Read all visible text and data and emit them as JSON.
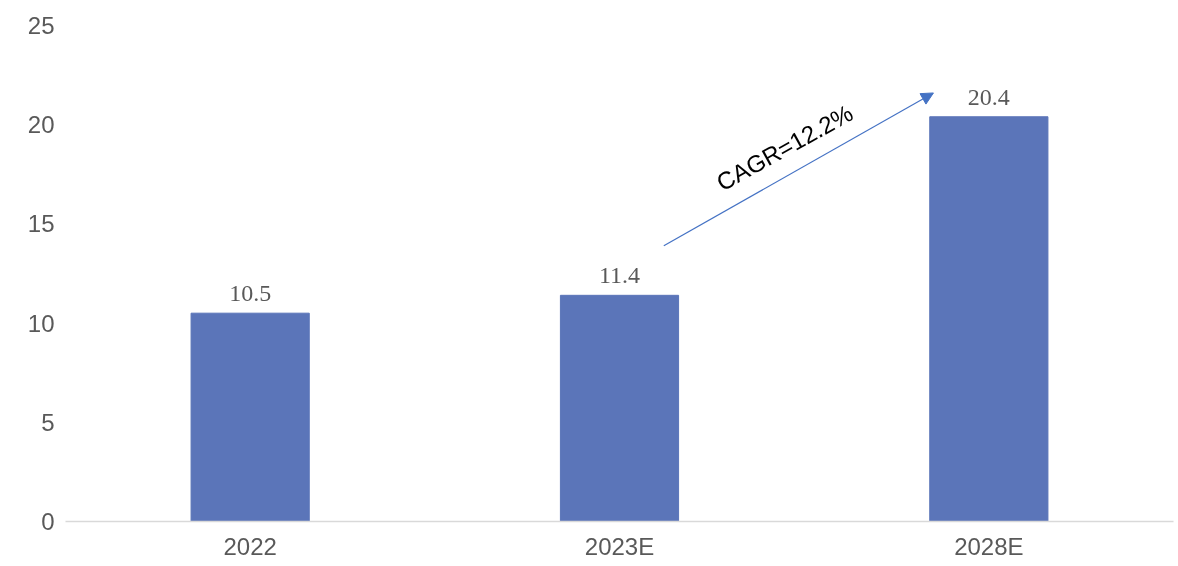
{
  "chart_data": {
    "type": "bar",
    "categories": [
      "2022",
      "2023E",
      "2028E"
    ],
    "values": [
      10.5,
      11.4,
      20.4
    ],
    "color": "#5b75b9",
    "ylim": [
      0,
      25
    ],
    "yticks": [
      0,
      5,
      10,
      15,
      20,
      25
    ],
    "grid": false,
    "data_labels": true,
    "annotations": [
      "CAGR=12.2%"
    ]
  }
}
